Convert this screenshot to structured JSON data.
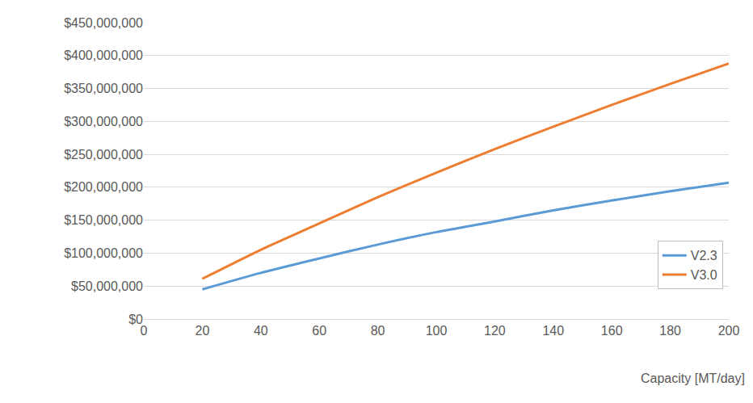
{
  "chart_data": {
    "type": "line",
    "x_label": "Capacity [MT/day]",
    "x": [
      20,
      40,
      60,
      80,
      100,
      120,
      140,
      160,
      180,
      200
    ],
    "series": [
      {
        "name": "V2.3",
        "color": "#5b9bd5",
        "values": [
          45000000,
          70000000,
          92000000,
          113000000,
          132000000,
          148000000,
          165000000,
          180000000,
          194000000,
          207000000
        ]
      },
      {
        "name": "V3.0",
        "color": "#ed7d31",
        "values": [
          61000000,
          105000000,
          145000000,
          185000000,
          222000000,
          258000000,
          292000000,
          325000000,
          357000000,
          388000000
        ]
      }
    ],
    "xlim": [
      0,
      200
    ],
    "xticks": [
      0,
      20,
      40,
      60,
      80,
      100,
      120,
      140,
      160,
      180,
      200
    ],
    "ylim": [
      0,
      450000000
    ],
    "yticks": [
      {
        "value": 0,
        "label": "$0"
      },
      {
        "value": 50000000,
        "label": "$50,000,000"
      },
      {
        "value": 100000000,
        "label": "$100,000,000"
      },
      {
        "value": 150000000,
        "label": "$150,000,000"
      },
      {
        "value": 200000000,
        "label": "$200,000,000"
      },
      {
        "value": 250000000,
        "label": "$250,000,000"
      },
      {
        "value": 300000000,
        "label": "$300,000,000"
      },
      {
        "value": 350000000,
        "label": "$350,000,000"
      },
      {
        "value": 400000000,
        "label": "$400,000,000"
      },
      {
        "value": 450000000,
        "label": "$450,000,000"
      }
    ],
    "grid": true,
    "legend": "lower right"
  }
}
